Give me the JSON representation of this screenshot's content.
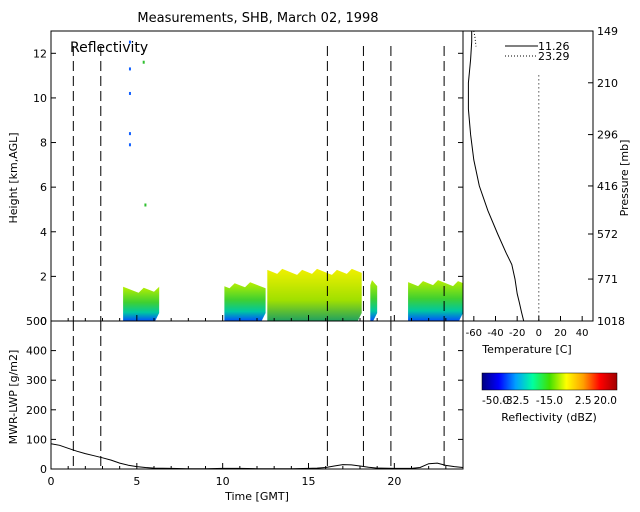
{
  "title": "Measurements, SHB, March 02, 1998",
  "chart_data": [
    {
      "type": "heatmap",
      "panel_label": "Reflectivity",
      "ylabel": "Height [km,AGL]",
      "xlim": [
        0,
        24
      ],
      "ylim": [
        0,
        13
      ],
      "yticks": [
        0,
        2,
        4,
        6,
        8,
        10,
        12
      ],
      "vlines_solid_dashed": [
        1.3,
        2.9,
        16.1,
        18.2,
        19.8,
        22.9
      ],
      "cloud_layers": [
        {
          "x0": 4.2,
          "x1": 6.3,
          "top_km": 1.4
        },
        {
          "x0": 10.1,
          "x1": 12.5,
          "top_km": 1.6
        },
        {
          "x0": 12.6,
          "x1": 18.1,
          "top_km": 2.2
        },
        {
          "x0": 18.6,
          "x1": 19.0,
          "top_km": 1.7
        },
        {
          "x0": 20.8,
          "x1": 24.0,
          "top_km": 1.7
        }
      ],
      "scattered_echoes": [
        {
          "x": 4.6,
          "y_km": 12.5
        },
        {
          "x": 4.6,
          "y_km": 11.3
        },
        {
          "x": 4.6,
          "y_km": 10.2
        },
        {
          "x": 4.6,
          "y_km": 8.4
        },
        {
          "x": 4.6,
          "y_km": 7.9
        },
        {
          "x": 5.4,
          "y_km": 11.6
        },
        {
          "x": 5.5,
          "y_km": 5.2
        }
      ]
    },
    {
      "type": "line",
      "title": "",
      "xlabel": "Time [GMT]",
      "ylabel": "MWR-LWP [g/m2]",
      "xlim": [
        0,
        24
      ],
      "ylim": [
        0,
        500
      ],
      "xticks": [
        0,
        5,
        10,
        15,
        20
      ],
      "yticks": [
        0,
        100,
        200,
        300,
        400,
        500
      ],
      "x": [
        0,
        0.5,
        1,
        1.5,
        2,
        2.5,
        3,
        3.5,
        4,
        4.5,
        5,
        5.5,
        6,
        7,
        8,
        9,
        10,
        11,
        12,
        13,
        14,
        15,
        15.5,
        16,
        16.5,
        17,
        17.5,
        18,
        18.5,
        19,
        20,
        21,
        21.5,
        22,
        22.5,
        23,
        23.5,
        24
      ],
      "values": [
        85,
        80,
        70,
        60,
        52,
        45,
        38,
        30,
        20,
        13,
        8,
        5,
        3,
        2,
        1,
        1,
        2,
        2,
        1,
        1,
        1,
        2,
        3,
        5,
        10,
        15,
        14,
        10,
        6,
        3,
        2,
        2,
        5,
        18,
        20,
        12,
        8,
        5
      ]
    },
    {
      "type": "line",
      "xlabel": "Temperature [C]",
      "ylabel": "Pressure [mb]",
      "xlim": [
        -70,
        50
      ],
      "xticks": [
        -60,
        -40,
        -20,
        0,
        20,
        40
      ],
      "pressure_ticks": [
        "149",
        "210",
        "296",
        "416",
        "572",
        "771",
        "1018"
      ],
      "series": [
        {
          "name": "11.26",
          "style": "solid",
          "temperature": [
            -62,
            -62,
            -63,
            -65,
            -65,
            -63,
            -60,
            -55,
            -47,
            -38,
            -30,
            -25,
            -22,
            -20,
            -18,
            -16,
            -14
          ],
          "pressure_mb": [
            149,
            160,
            180,
            210,
            250,
            296,
            350,
            416,
            490,
            572,
            650,
            700,
            771,
            850,
            900,
            960,
            1018
          ]
        },
        {
          "name": "23.29",
          "style": "dotted",
          "temperature": [
            -60,
            -59,
            -58
          ],
          "pressure_mb": [
            149,
            155,
            165
          ]
        },
        {
          "name": "zero-line",
          "style": "dotted",
          "temperature": [
            0,
            0
          ],
          "pressure_mb": [
            200,
            1018
          ]
        }
      ]
    },
    {
      "type": "colorbar",
      "label": "Reflectivity (dBZ)",
      "range": [
        -50,
        20
      ],
      "tick_labels": [
        "-50.0",
        "-32.5",
        "-15.0",
        "2.5",
        "20.0"
      ],
      "colors": [
        "#000080",
        "#0000ff",
        "#00a0ff",
        "#00ffa0",
        "#40e000",
        "#ffff00",
        "#ffa000",
        "#ff0000",
        "#a00000"
      ]
    }
  ]
}
